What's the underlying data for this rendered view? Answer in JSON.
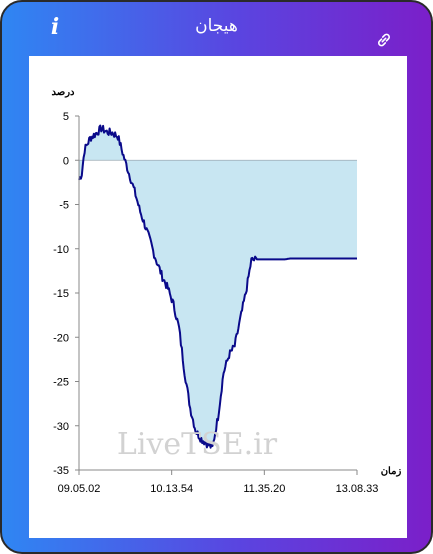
{
  "header": {
    "title": "هیجان",
    "info_icon": "info-icon",
    "link_icon": "link-icon"
  },
  "watermark": "LiveTSE.ir",
  "colors": {
    "line": "#0a0a8a",
    "fill": "#c8e6f2",
    "gradient_start": "#2f86f3",
    "gradient_end": "#7b1fc9"
  },
  "chart_data": {
    "type": "area",
    "title": "",
    "ylabel": "درصد",
    "xlabel": "زمان",
    "ylim": [
      -35,
      5
    ],
    "y_ticks": [
      5,
      0,
      -5,
      -10,
      -15,
      -20,
      -25,
      -30,
      -35
    ],
    "y_tick_labels": [
      "5",
      "0",
      "-5",
      "-10",
      "-15",
      "-20",
      "-25",
      "-30",
      "-35"
    ],
    "x_tick_labels": [
      "09.05.02",
      "10.13.54",
      "11.35.20",
      "13.08.33"
    ],
    "grid": false,
    "x": [
      0,
      1,
      2,
      4,
      6,
      8,
      10,
      12,
      14,
      16,
      18,
      20,
      22,
      24,
      26,
      27,
      28,
      29,
      30,
      32,
      34,
      36,
      38,
      40,
      42,
      44,
      46,
      48,
      50,
      52,
      54,
      56,
      58,
      60,
      62,
      64,
      66,
      68,
      70,
      72,
      74,
      76,
      78,
      80,
      82,
      84,
      86,
      88,
      90,
      92,
      94,
      95.5,
      100
    ],
    "values": [
      -2.2,
      -1.5,
      1.2,
      2.5,
      3.0,
      3.6,
      3.2,
      3.1,
      2.7,
      0.5,
      -1.5,
      -3.5,
      -5.8,
      -7.6,
      -9.5,
      -10.6,
      -11.5,
      -12.3,
      -13.2,
      -14.5,
      -16.3,
      -19.0,
      -24.0,
      -28.0,
      -30.6,
      -31.5,
      -32.0,
      -32.5,
      -29.0,
      -24.0,
      -22.0,
      -21.0,
      -18.0,
      -15.0,
      -11.3,
      -11.2,
      -11.2,
      -11.2,
      -11.2,
      -11.2,
      -11.2,
      -11.1,
      -11.1,
      -11.1,
      -11.1,
      -11.1,
      -11.1,
      -11.1,
      -11.1,
      -11.1,
      -11.1,
      -11.1,
      -11.1
    ]
  }
}
